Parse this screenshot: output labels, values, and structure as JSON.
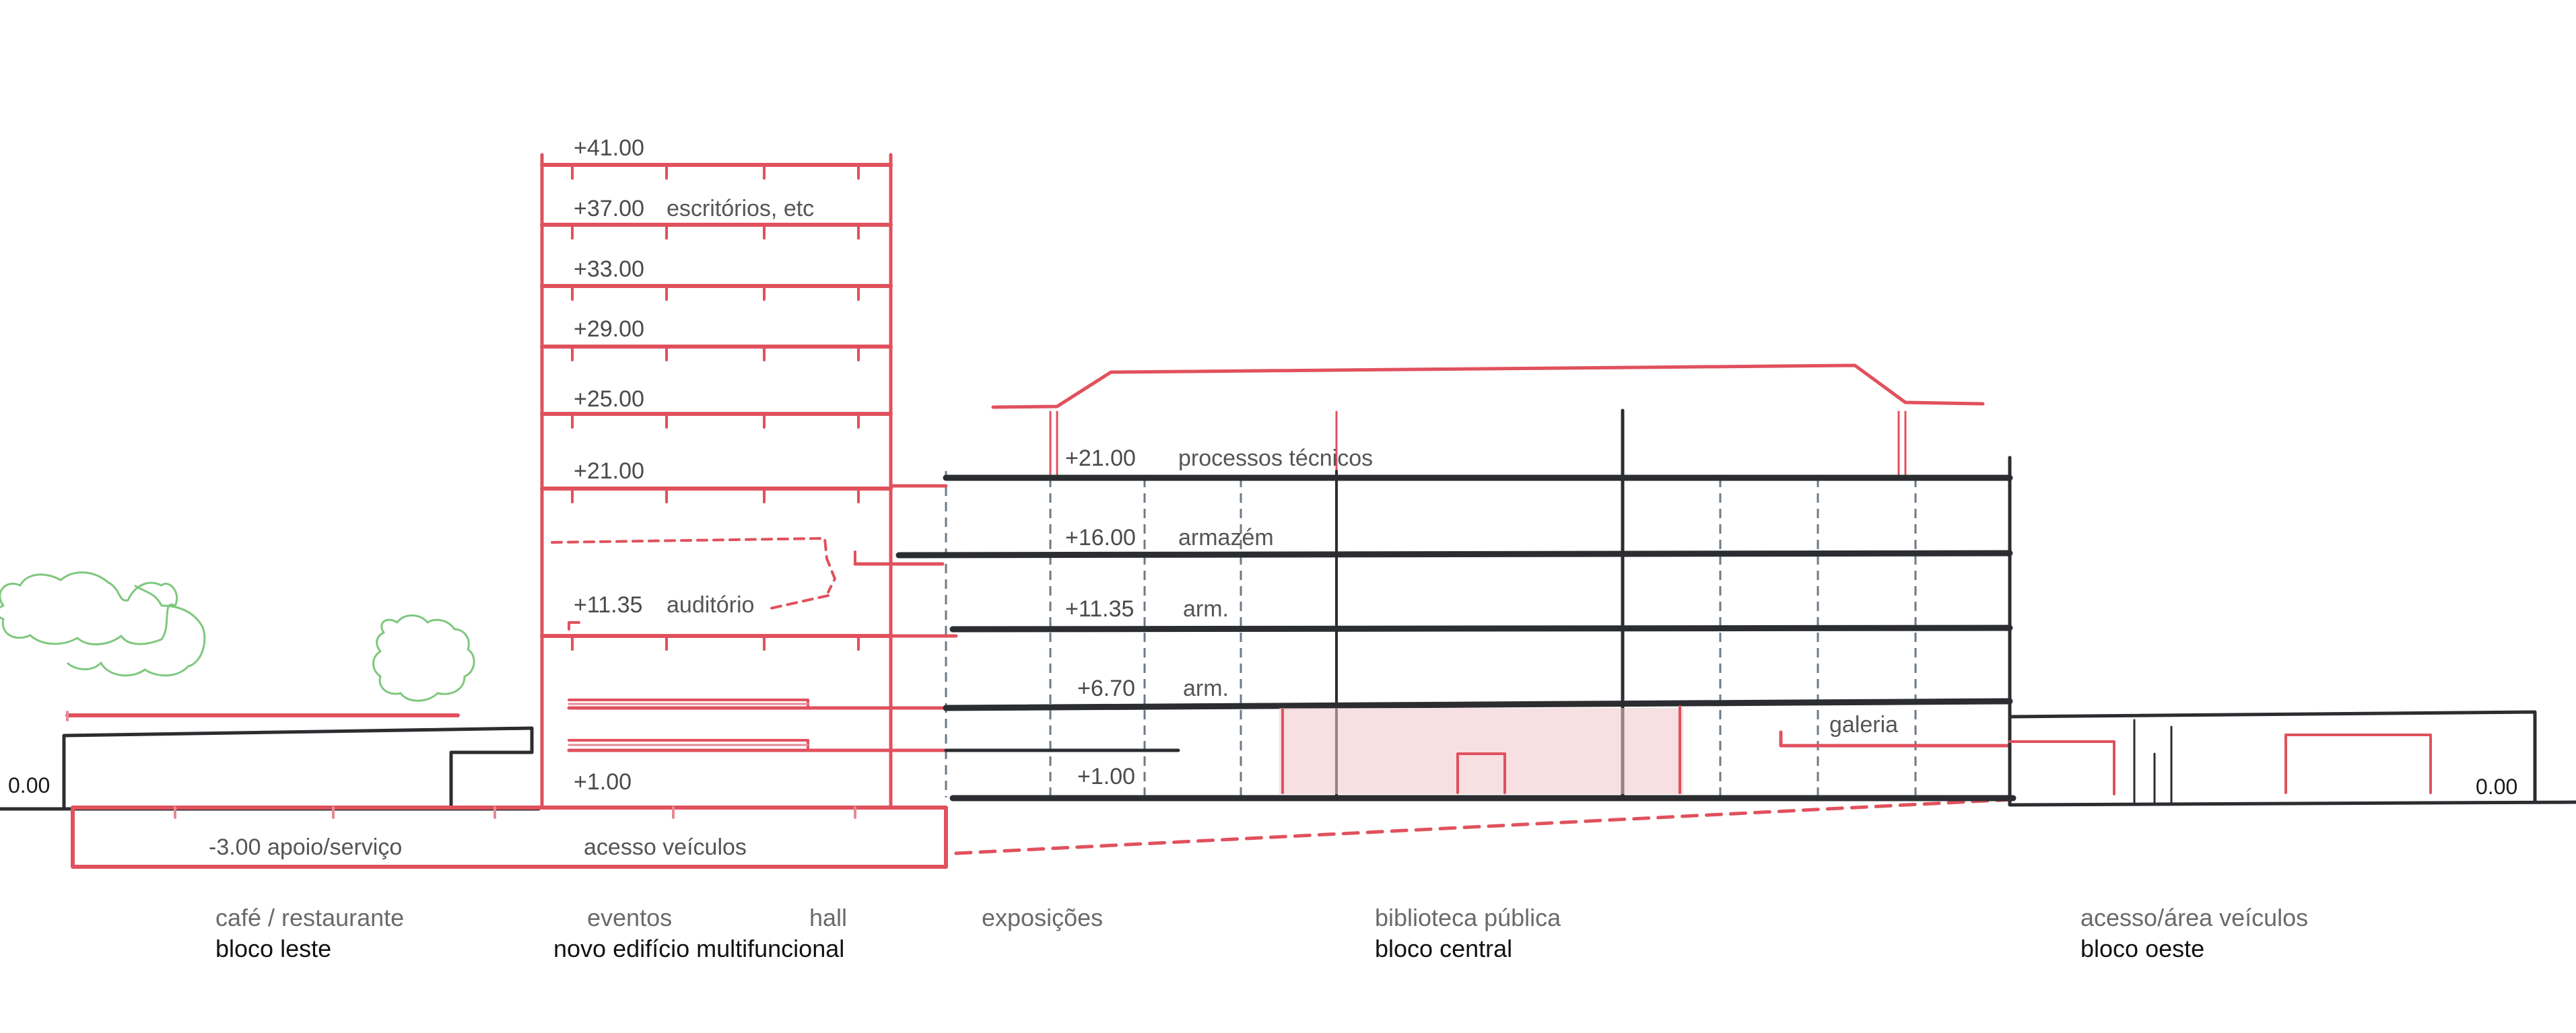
{
  "tower_levels": [
    "+41.00",
    "+37.00",
    "+33.00",
    "+29.00",
    "+25.00",
    "+21.00",
    "+11.35",
    "+1.00"
  ],
  "tower_notes": {
    "escritorios": "escritórios, etc",
    "auditorio": "auditório"
  },
  "central_levels": [
    {
      "level": "+21.00",
      "use": "processos técnicos"
    },
    {
      "level": "+16.00",
      "use": "armazém"
    },
    {
      "level": "+11.35",
      "use": "arm."
    },
    {
      "level": "+6.70",
      "use": "arm."
    },
    {
      "level": "+1.00",
      "use": ""
    }
  ],
  "annotations": {
    "galeria": "galeria",
    "basement": "-3.00 apoio/serviço",
    "vehicle_access": "acesso veículos",
    "ground_left": "0.00",
    "ground_right": "0.00"
  },
  "zones": [
    {
      "use": "café / restaurante",
      "block": "bloco leste"
    },
    {
      "use": "eventos",
      "block": "novo edifício multifuncional"
    },
    {
      "use": "hall",
      "block": ""
    },
    {
      "use": "exposições",
      "block": ""
    },
    {
      "use": "biblioteca pública",
      "block": "bloco central"
    },
    {
      "use": "acesso/área veículos",
      "block": "bloco oeste"
    }
  ],
  "colors": {
    "new_building": "#e0515d",
    "existing_building": "#2b2d30",
    "trees": "#7ec87e"
  }
}
